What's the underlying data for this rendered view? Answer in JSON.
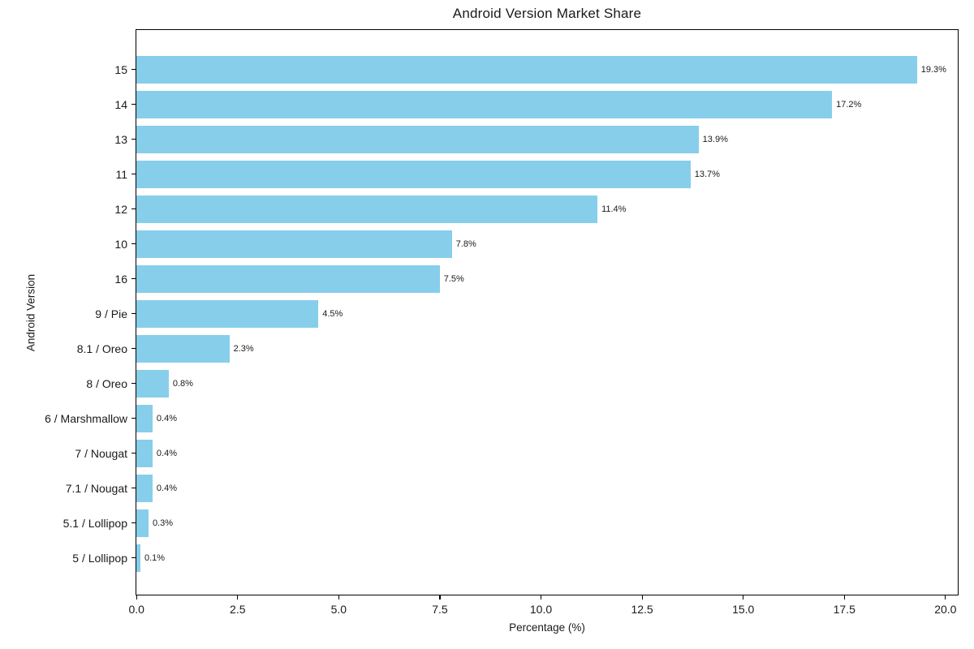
{
  "chart_data": {
    "type": "bar",
    "orientation": "horizontal",
    "title": "Android Version Market Share",
    "xlabel": "Percentage (%)",
    "ylabel": "Android Version",
    "categories": [
      "15",
      "14",
      "13",
      "11",
      "12",
      "10",
      "16",
      "9 / Pie",
      "8.1 / Oreo",
      "8 / Oreo",
      "6 / Marshmallow",
      "7 / Nougat",
      "7.1 / Nougat",
      "5.1 / Lollipop",
      "5 / Lollipop"
    ],
    "values": [
      19.3,
      17.2,
      13.9,
      13.7,
      11.4,
      7.8,
      7.5,
      4.5,
      2.3,
      0.8,
      0.4,
      0.4,
      0.4,
      0.3,
      0.1
    ],
    "value_labels": [
      "19.3%",
      "17.2%",
      "13.9%",
      "13.7%",
      "11.4%",
      "7.8%",
      "7.5%",
      "4.5%",
      "2.3%",
      "0.8%",
      "0.4%",
      "0.4%",
      "0.4%",
      "0.3%",
      "0.1%"
    ],
    "x_tick_labels": [
      "0.0",
      "2.5",
      "5.0",
      "7.5",
      "10.0",
      "12.5",
      "15.0",
      "17.5",
      "20.0"
    ],
    "x_ticks": [
      0,
      2.5,
      5,
      7.5,
      10,
      12.5,
      15,
      17.5,
      20
    ],
    "xlim": [
      0,
      20.3
    ],
    "grid": false,
    "legend": null,
    "bar_color": "#87CEEB",
    "text_color": "#1a1a1a",
    "spine_color": "#000000",
    "background_color": "#ffffff"
  }
}
